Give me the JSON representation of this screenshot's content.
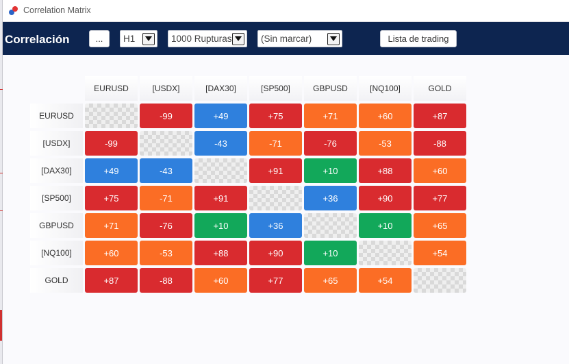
{
  "window": {
    "title": "Correlation Matrix",
    "app_icon": "two-dot-logo-icon"
  },
  "toolbar": {
    "title": "Correlación",
    "more_button_label": "...",
    "timeframe": {
      "value": "H1"
    },
    "bars": {
      "value": "1000 Rupturas"
    },
    "marker": {
      "value": "(Sin marcar)"
    },
    "trading_list_label": "Lista de trading"
  },
  "colors": {
    "toolbar_bg": "#0d2550",
    "strong_positive": "#d92b2f",
    "moderate_positive": "#fb6d25",
    "weak": "#12a85a",
    "negative_blue": "#2f80dd",
    "strong_negative": "#d92b2f",
    "moderate_negative": "#fb6d25"
  },
  "matrix": {
    "symbols": [
      "EURUSD",
      "[USDX]",
      "[DAX30]",
      "[SP500]",
      "GBPUSD",
      "[NQ100]",
      "GOLD"
    ],
    "rows": [
      [
        {
          "v": "",
          "c": "empty"
        },
        {
          "v": "-99",
          "c": "red"
        },
        {
          "v": "+49",
          "c": "blue"
        },
        {
          "v": "+75",
          "c": "red"
        },
        {
          "v": "+71",
          "c": "orange"
        },
        {
          "v": "+60",
          "c": "orange"
        },
        {
          "v": "+87",
          "c": "red"
        }
      ],
      [
        {
          "v": "-99",
          "c": "red"
        },
        {
          "v": "",
          "c": "empty"
        },
        {
          "v": "-43",
          "c": "blue"
        },
        {
          "v": "-71",
          "c": "orange"
        },
        {
          "v": "-76",
          "c": "red"
        },
        {
          "v": "-53",
          "c": "orange"
        },
        {
          "v": "-88",
          "c": "red"
        }
      ],
      [
        {
          "v": "+49",
          "c": "blue"
        },
        {
          "v": "-43",
          "c": "blue"
        },
        {
          "v": "",
          "c": "empty"
        },
        {
          "v": "+91",
          "c": "red"
        },
        {
          "v": "+10",
          "c": "green"
        },
        {
          "v": "+88",
          "c": "red"
        },
        {
          "v": "+60",
          "c": "orange"
        }
      ],
      [
        {
          "v": "+75",
          "c": "red"
        },
        {
          "v": "-71",
          "c": "orange"
        },
        {
          "v": "+91",
          "c": "red"
        },
        {
          "v": "",
          "c": "empty"
        },
        {
          "v": "+36",
          "c": "blue"
        },
        {
          "v": "+90",
          "c": "red"
        },
        {
          "v": "+77",
          "c": "red"
        }
      ],
      [
        {
          "v": "+71",
          "c": "orange"
        },
        {
          "v": "-76",
          "c": "red"
        },
        {
          "v": "+10",
          "c": "green"
        },
        {
          "v": "+36",
          "c": "blue"
        },
        {
          "v": "",
          "c": "empty"
        },
        {
          "v": "+10",
          "c": "green"
        },
        {
          "v": "+65",
          "c": "orange"
        }
      ],
      [
        {
          "v": "+60",
          "c": "orange"
        },
        {
          "v": "-53",
          "c": "orange"
        },
        {
          "v": "+88",
          "c": "red"
        },
        {
          "v": "+90",
          "c": "red"
        },
        {
          "v": "+10",
          "c": "green"
        },
        {
          "v": "",
          "c": "empty"
        },
        {
          "v": "+54",
          "c": "orange"
        }
      ],
      [
        {
          "v": "+87",
          "c": "red"
        },
        {
          "v": "-88",
          "c": "red"
        },
        {
          "v": "+60",
          "c": "orange"
        },
        {
          "v": "+77",
          "c": "red"
        },
        {
          "v": "+65",
          "c": "orange"
        },
        {
          "v": "+54",
          "c": "orange"
        },
        {
          "v": "",
          "c": "empty"
        }
      ]
    ]
  }
}
